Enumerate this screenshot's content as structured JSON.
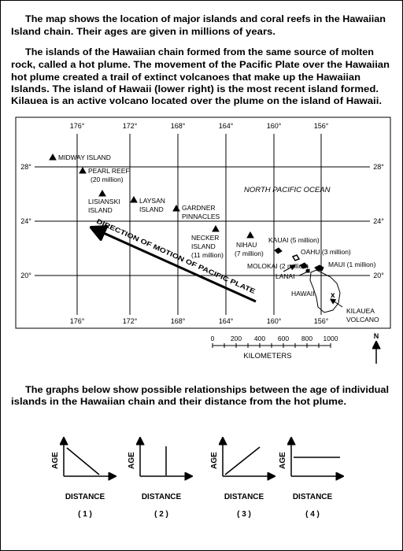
{
  "intro": {
    "paragraph_1": [
      "The map shows the location of major islands and coral reefs in the Hawaiian",
      "Island chain.  Their ages are given in millions of years."
    ],
    "paragraph_2": [
      "The islands of the Hawaiian chain formed from the same source of molten",
      "rock, called a hot plume.  The movement of the Pacific Plate over the Hawaiian",
      "hot plume created a trail of extinct volcanoes that make up the Hawaiian",
      "Islands.  The island of Hawaii (lower right) is the most recent island formed.",
      "Kilauea is an active volcano located over the plume on the island of Hawaii."
    ]
  },
  "map": {
    "longitudes_top": [
      "176°",
      "172°",
      "168°",
      "164°",
      "160°",
      "156°"
    ],
    "longitudes_bottom": [
      "176°",
      "172°",
      "168°",
      "164°",
      "160°",
      "156°"
    ],
    "latitudes_left": [
      "28°",
      "24°",
      "20°"
    ],
    "latitudes_right": [
      "28°",
      "24°",
      "20°"
    ],
    "ocean_label": "NORTH PACIFIC OCEAN",
    "plate_motion_label": "DIRECTION OF MOTION OF PACIFIC PLATE",
    "islands": [
      {
        "label": [
          "MIDWAY ISLAND"
        ]
      },
      {
        "label": [
          "PEARL REEF",
          "(20 million)"
        ]
      },
      {
        "label": [
          "LISIANSKI",
          "ISLAND"
        ]
      },
      {
        "label": [
          "LAYSAN",
          "ISLAND"
        ]
      },
      {
        "label": [
          "GARDNER",
          "PINNACLES"
        ]
      },
      {
        "label": [
          "NECKER",
          "ISLAND",
          "(11 million)"
        ]
      },
      {
        "label": [
          "NIHAU",
          "(7 million)"
        ]
      },
      {
        "label": [
          "KAUAI (5 million)"
        ]
      },
      {
        "label": [
          "OAHU (3 million)"
        ]
      },
      {
        "label": [
          "MOLOKAI (2 million)"
        ]
      },
      {
        "label": [
          "MAUI (1 million)"
        ]
      },
      {
        "label": [
          "LANAI"
        ]
      },
      {
        "label": [
          "HAWAII"
        ]
      },
      {
        "label": [
          "KILAUEA",
          "VOLCANO"
        ]
      }
    ],
    "scale": {
      "ticks": [
        "0",
        "200",
        "400",
        "600",
        "800",
        "1000"
      ],
      "unit": "KILOMETERS"
    },
    "north": "N"
  },
  "graphs_intro": [
    "The graphs below show possible relationships between the age of individual",
    "islands in the Hawaiian chain and their distance from the hot plume."
  ],
  "graphs": [
    {
      "y_label": "AGE",
      "x_label": "DISTANCE",
      "label": "( 1 )"
    },
    {
      "y_label": "AGE",
      "x_label": "DISTANCE",
      "label": "( 2 )"
    },
    {
      "y_label": "AGE",
      "x_label": "DISTANCE",
      "label": "( 3 )"
    },
    {
      "y_label": "AGE",
      "x_label": "DISTANCE",
      "label": "( 4 )"
    }
  ]
}
